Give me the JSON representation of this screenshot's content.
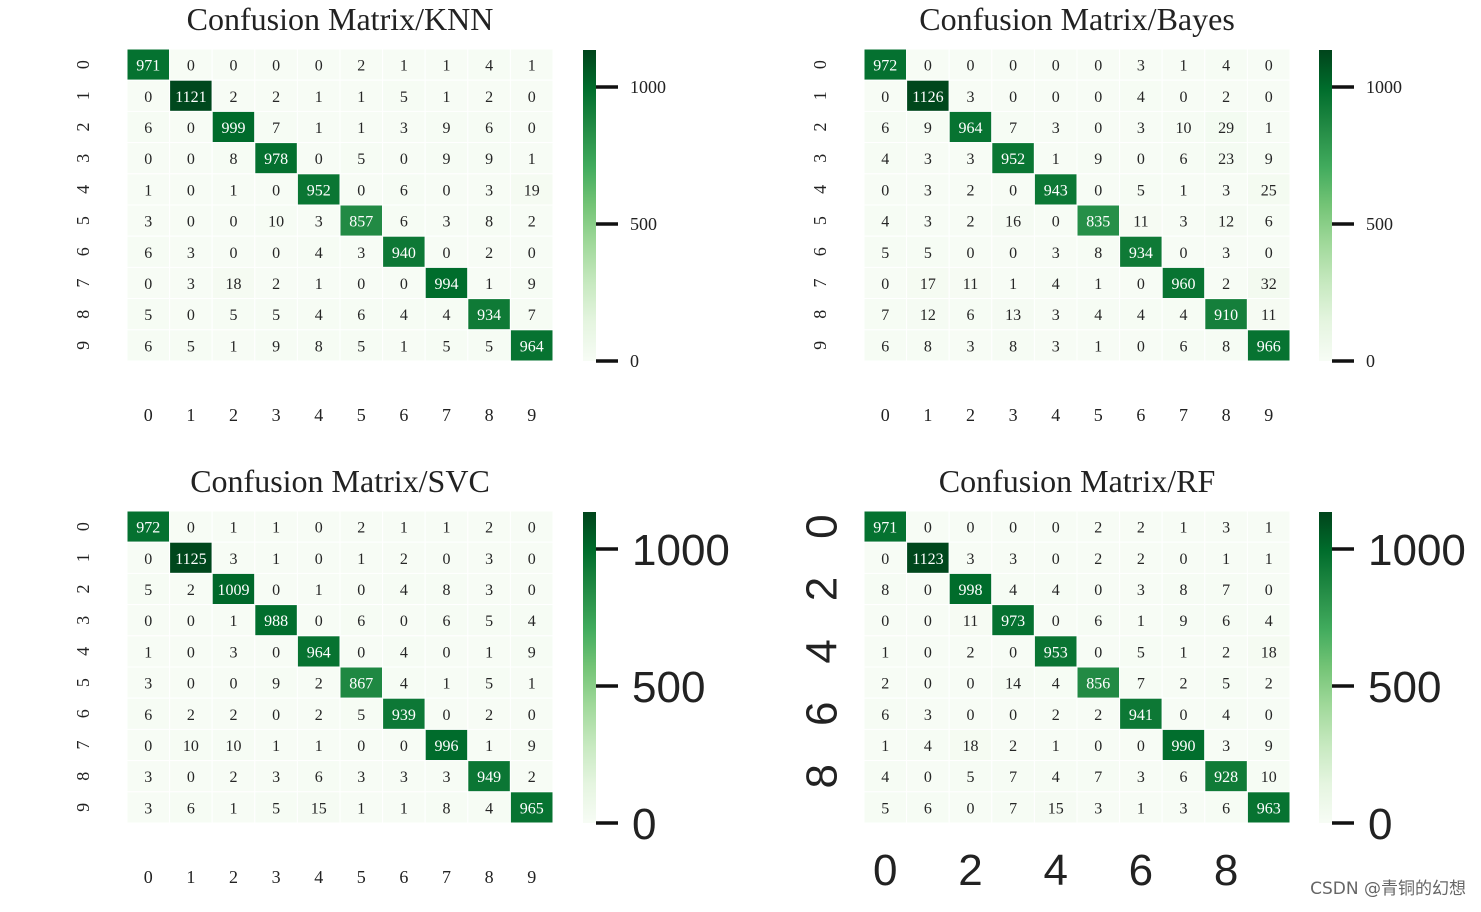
{
  "chart_data": [
    {
      "type": "heatmap",
      "title": "Confusion Matrix/KNN",
      "xticklabels": [
        "0",
        "1",
        "2",
        "3",
        "4",
        "5",
        "6",
        "7",
        "8",
        "9"
      ],
      "yticklabels": [
        "0",
        "1",
        "2",
        "3",
        "4",
        "5",
        "6",
        "7",
        "8",
        "9"
      ],
      "colorbar": {
        "ticks": [
          "0",
          "500",
          "1000"
        ],
        "range": [
          0,
          1135
        ],
        "colormap": "Greens"
      },
      "matrix": [
        [
          971,
          0,
          0,
          0,
          0,
          2,
          1,
          1,
          4,
          1
        ],
        [
          0,
          1121,
          2,
          2,
          1,
          1,
          5,
          1,
          2,
          0
        ],
        [
          6,
          0,
          999,
          7,
          1,
          1,
          3,
          9,
          6,
          0
        ],
        [
          0,
          0,
          8,
          978,
          0,
          5,
          0,
          9,
          9,
          1
        ],
        [
          1,
          0,
          1,
          0,
          952,
          0,
          6,
          0,
          3,
          19
        ],
        [
          3,
          0,
          0,
          10,
          3,
          857,
          6,
          3,
          8,
          2
        ],
        [
          6,
          3,
          0,
          0,
          4,
          3,
          940,
          0,
          2,
          0
        ],
        [
          0,
          3,
          18,
          2,
          1,
          0,
          0,
          994,
          1,
          9
        ],
        [
          5,
          0,
          5,
          5,
          4,
          6,
          4,
          4,
          934,
          7
        ],
        [
          6,
          5,
          1,
          9,
          8,
          5,
          1,
          5,
          5,
          964
        ]
      ]
    },
    {
      "type": "heatmap",
      "title": "Confusion Matrix/Bayes",
      "xticklabels": [
        "0",
        "1",
        "2",
        "3",
        "4",
        "5",
        "6",
        "7",
        "8",
        "9"
      ],
      "yticklabels": [
        "0",
        "1",
        "2",
        "3",
        "4",
        "5",
        "6",
        "7",
        "8",
        "9"
      ],
      "colorbar": {
        "ticks": [
          "0",
          "500",
          "1000"
        ],
        "range": [
          0,
          1135
        ],
        "colormap": "Greens"
      },
      "matrix": [
        [
          972,
          0,
          0,
          0,
          0,
          0,
          3,
          1,
          4,
          0
        ],
        [
          0,
          1126,
          3,
          0,
          0,
          0,
          4,
          0,
          2,
          0
        ],
        [
          6,
          9,
          964,
          7,
          3,
          0,
          3,
          10,
          29,
          1
        ],
        [
          4,
          3,
          3,
          952,
          1,
          9,
          0,
          6,
          23,
          9
        ],
        [
          0,
          3,
          2,
          0,
          943,
          0,
          5,
          1,
          3,
          25
        ],
        [
          4,
          3,
          2,
          16,
          0,
          835,
          11,
          3,
          12,
          6
        ],
        [
          5,
          5,
          0,
          0,
          3,
          8,
          934,
          0,
          3,
          0
        ],
        [
          0,
          17,
          11,
          1,
          4,
          1,
          0,
          960,
          2,
          32
        ],
        [
          7,
          12,
          6,
          13,
          3,
          4,
          4,
          4,
          910,
          11
        ],
        [
          6,
          8,
          3,
          8,
          3,
          1,
          0,
          6,
          8,
          966
        ]
      ]
    },
    {
      "type": "heatmap",
      "title": "Confusion Matrix/SVC",
      "xticklabels": [
        "0",
        "1",
        "2",
        "3",
        "4",
        "5",
        "6",
        "7",
        "8",
        "9"
      ],
      "yticklabels": [
        "0",
        "1",
        "2",
        "3",
        "4",
        "5",
        "6",
        "7",
        "8",
        "9"
      ],
      "colorbar": {
        "ticks": [
          "0",
          "500",
          "1000"
        ],
        "range": [
          0,
          1135
        ],
        "colormap": "Greens"
      },
      "matrix": [
        [
          972,
          0,
          1,
          1,
          0,
          2,
          1,
          1,
          2,
          0
        ],
        [
          0,
          1125,
          3,
          1,
          0,
          1,
          2,
          0,
          3,
          0
        ],
        [
          5,
          2,
          1009,
          0,
          1,
          0,
          4,
          8,
          3,
          0
        ],
        [
          0,
          0,
          1,
          988,
          0,
          6,
          0,
          6,
          5,
          4
        ],
        [
          1,
          0,
          3,
          0,
          964,
          0,
          4,
          0,
          1,
          9
        ],
        [
          3,
          0,
          0,
          9,
          2,
          867,
          4,
          1,
          5,
          1
        ],
        [
          6,
          2,
          2,
          0,
          2,
          5,
          939,
          0,
          2,
          0
        ],
        [
          0,
          10,
          10,
          1,
          1,
          0,
          0,
          996,
          1,
          9
        ],
        [
          3,
          0,
          2,
          3,
          6,
          3,
          3,
          3,
          949,
          2
        ],
        [
          3,
          6,
          1,
          5,
          15,
          1,
          1,
          8,
          4,
          965
        ]
      ]
    },
    {
      "type": "heatmap",
      "title": "Confusion Matrix/RF",
      "xticklabels": [
        "0",
        "",
        "2",
        "",
        "4",
        "",
        "6",
        "",
        "8",
        ""
      ],
      "yticklabels": [
        "0",
        "",
        "2",
        "",
        "4",
        "",
        "6",
        "",
        "8",
        ""
      ],
      "colorbar": {
        "ticks": [
          "0",
          "500",
          "1000"
        ],
        "range": [
          0,
          1135
        ],
        "colormap": "Greens"
      },
      "matrix": [
        [
          971,
          0,
          0,
          0,
          0,
          2,
          2,
          1,
          3,
          1
        ],
        [
          0,
          1123,
          3,
          3,
          0,
          2,
          2,
          0,
          1,
          1
        ],
        [
          8,
          0,
          998,
          4,
          4,
          0,
          3,
          8,
          7,
          0
        ],
        [
          0,
          0,
          11,
          973,
          0,
          6,
          1,
          9,
          6,
          4
        ],
        [
          1,
          0,
          2,
          0,
          953,
          0,
          5,
          1,
          2,
          18
        ],
        [
          2,
          0,
          0,
          14,
          4,
          856,
          7,
          2,
          5,
          2
        ],
        [
          6,
          3,
          0,
          0,
          2,
          2,
          941,
          0,
          4,
          0
        ],
        [
          1,
          4,
          18,
          2,
          1,
          0,
          0,
          990,
          3,
          9
        ],
        [
          4,
          0,
          5,
          7,
          4,
          7,
          3,
          6,
          928,
          10
        ],
        [
          5,
          6,
          0,
          7,
          15,
          3,
          1,
          3,
          6,
          963
        ]
      ]
    }
  ],
  "watermark": "CSDN @青铜的幻想"
}
